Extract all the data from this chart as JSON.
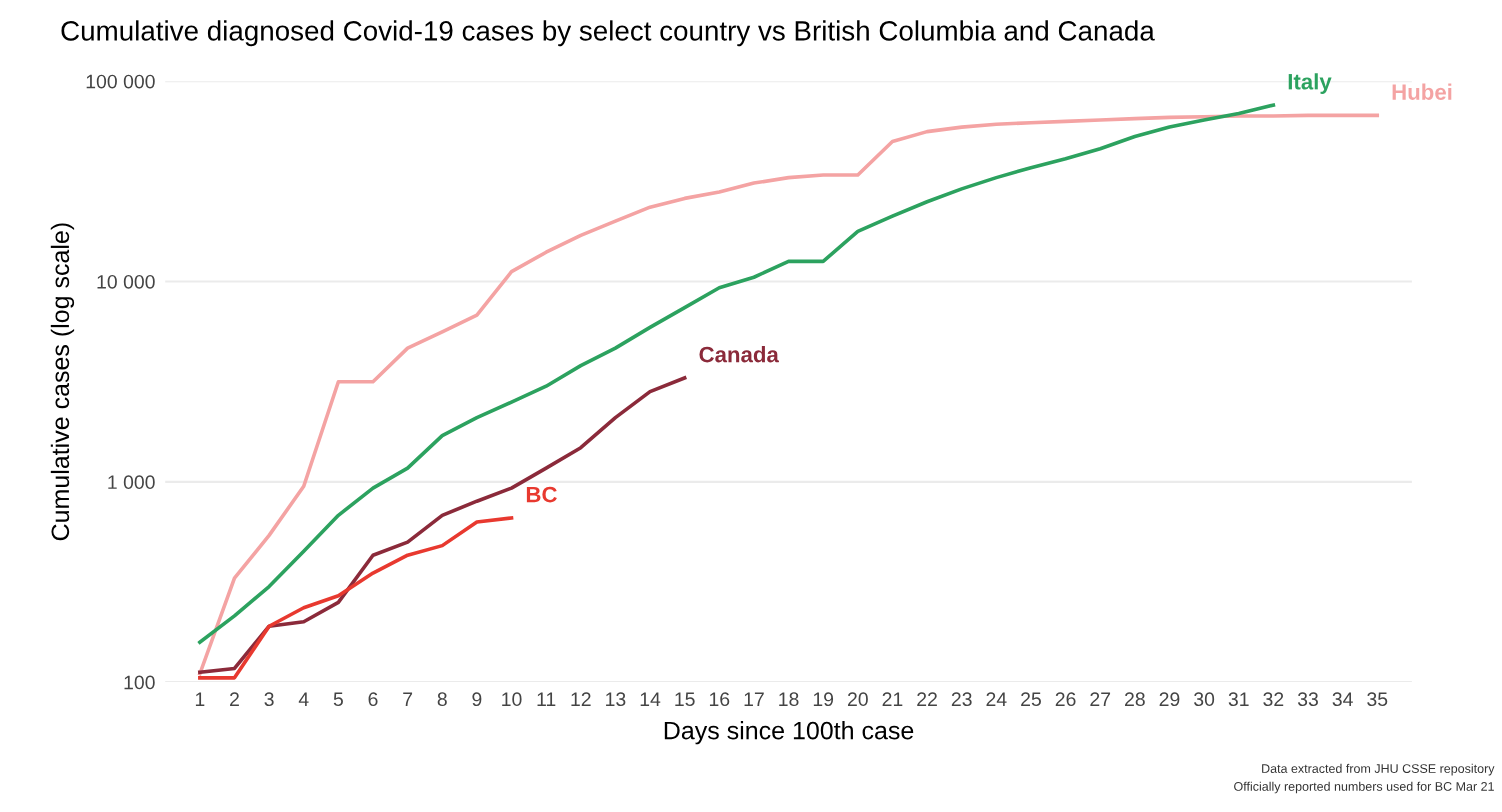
{
  "chart_data": {
    "type": "line",
    "title": "Cumulative diagnosed Covid-19 cases by select country vs British Columbia and Canada",
    "xlabel": "Days since 100th case",
    "ylabel": "Cumulative cases (log scale)",
    "log": "y",
    "grid": "y",
    "legend": false,
    "xlim": [
      0,
      36
    ],
    "xticks": [
      1,
      2,
      3,
      4,
      5,
      6,
      7,
      8,
      9,
      10,
      11,
      12,
      13,
      14,
      15,
      16,
      17,
      18,
      19,
      20,
      21,
      22,
      23,
      24,
      25,
      26,
      27,
      28,
      29,
      30,
      31,
      32,
      33,
      34,
      35
    ],
    "ylim": [
      100,
      100000
    ],
    "yticks": [
      {
        "value": 100,
        "label": "100"
      },
      {
        "value": 1000,
        "label": "1 000"
      },
      {
        "value": 10000,
        "label": "10 000"
      },
      {
        "value": 100000,
        "label": "100 000"
      }
    ],
    "series": [
      {
        "name": "Hubei",
        "color": "#f4a3a3",
        "x": [
          1,
          2,
          3,
          4,
          5,
          6,
          7,
          8,
          9,
          10,
          11,
          12,
          13,
          14,
          15,
          16,
          17,
          18,
          19,
          20,
          21,
          22,
          23,
          24,
          25,
          26,
          27,
          28,
          29,
          30,
          31,
          32,
          33,
          34,
          35
        ],
        "values": [
          110,
          330,
          540,
          950,
          3160,
          3160,
          4650,
          5600,
          6800,
          11200,
          14000,
          17000,
          20000,
          23500,
          26000,
          28000,
          31000,
          33000,
          34000,
          34000,
          50000,
          56000,
          59000,
          61000,
          62000,
          63000,
          64000,
          65000,
          66000,
          66500,
          67000,
          67000,
          67500,
          67500,
          67500
        ]
      },
      {
        "name": "Italy",
        "color": "#2ca25f",
        "x": [
          1,
          2,
          3,
          4,
          5,
          6,
          7,
          8,
          9,
          10,
          11,
          12,
          13,
          14,
          15,
          16,
          17,
          18,
          19,
          20,
          21,
          22,
          23,
          24,
          25,
          26,
          27,
          28,
          29,
          30,
          31,
          32
        ],
        "values": [
          158,
          214,
          300,
          450,
          680,
          930,
          1170,
          1700,
          2090,
          2500,
          3000,
          3800,
          4650,
          5900,
          7400,
          9300,
          10500,
          12600,
          12600,
          17800,
          21200,
          25000,
          29000,
          33000,
          37000,
          41000,
          46000,
          53000,
          59000,
          64000,
          69000,
          76000
        ]
      },
      {
        "name": "Canada",
        "color": "#8b2a3a",
        "x": [
          1,
          2,
          3,
          4,
          5,
          6,
          7,
          8,
          9,
          10,
          11,
          12,
          13,
          14,
          15
        ],
        "values": [
          112,
          117,
          190,
          200,
          250,
          430,
          500,
          680,
          800,
          930,
          1170,
          1480,
          2090,
          2820,
          3300
        ]
      },
      {
        "name": "BC",
        "color": "#e8392f",
        "x": [
          1,
          2,
          3,
          4,
          5,
          6,
          7,
          8,
          9,
          10
        ],
        "values": [
          105,
          105,
          190,
          235,
          270,
          350,
          430,
          480,
          630,
          660
        ]
      }
    ],
    "annotations": [
      "Data extracted from JHU CSSE repository",
      "Officially reported numbers used for BC Mar 21"
    ]
  }
}
